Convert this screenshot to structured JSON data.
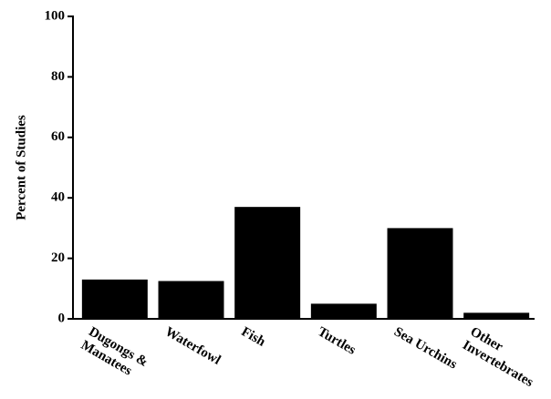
{
  "chart_data": {
    "type": "bar",
    "y_label": "Percent of Studies",
    "categories": [
      "Dugongs & Manatees",
      "Waterfowl",
      "Fish",
      "Turtles",
      "Sea Urchins",
      "Other Invertebrates"
    ],
    "values": [
      13,
      12.5,
      37,
      5,
      30,
      2
    ],
    "color": "#000000",
    "ylim": [
      0,
      100
    ],
    "yticks": [
      0,
      20,
      40,
      60,
      80,
      100
    ],
    "grid": false
  }
}
